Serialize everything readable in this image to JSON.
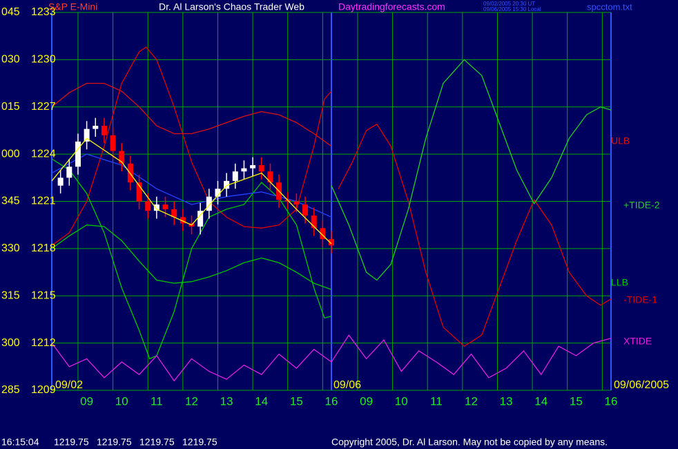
{
  "chart_data": {
    "type": "line",
    "symbol": "S&P E-Mini",
    "title": "Dr. Al Larson's Chaos Trader Web",
    "subtitle": "Daytradingforecasts.com",
    "timestamps": [
      "09/02/2005 20:30 UT",
      "09/06/2005 15:30 Local"
    ],
    "file": "spcctom.txt",
    "xlim": [
      0,
      16
    ],
    "xticks": [
      {
        "value": 1,
        "label": "09"
      },
      {
        "value": 2,
        "label": "10"
      },
      {
        "value": 3,
        "label": "11"
      },
      {
        "value": 4,
        "label": "12"
      },
      {
        "value": 5,
        "label": "13"
      },
      {
        "value": 6,
        "label": "14"
      },
      {
        "value": 7,
        "label": "15"
      },
      {
        "value": 8,
        "label": "16"
      },
      {
        "value": 9,
        "label": "09"
      },
      {
        "value": 10,
        "label": "10"
      },
      {
        "value": 11,
        "label": "11"
      },
      {
        "value": 12,
        "label": "12"
      },
      {
        "value": 13,
        "label": "13"
      },
      {
        "value": 14,
        "label": "14"
      },
      {
        "value": 15,
        "label": "15"
      },
      {
        "value": 16,
        "label": "16"
      }
    ],
    "xgrid": [
      0.75,
      1.75,
      2.75,
      3.75,
      4.75,
      5.75,
      6.75,
      7.75,
      8.75,
      9.75,
      10.75,
      11.75,
      12.75,
      13.75,
      14.75,
      15.75
    ],
    "date_labels": [
      "09/02",
      "09/06",
      "09/06/2005"
    ],
    "ylim": [
      1209,
      1233
    ],
    "yticks": [
      1209,
      1212,
      1215,
      1218,
      1221,
      1224,
      1227,
      1230,
      1233
    ],
    "ytick_codes": [
      "285",
      "300",
      "315",
      "330",
      "345",
      "000",
      "015",
      "030",
      "045"
    ],
    "grid": true,
    "grid_color": "#00a800",
    "bars": {
      "x": [
        0.25,
        0.5,
        0.75,
        1,
        1.25,
        1.5,
        1.75,
        2,
        2.25,
        2.5,
        2.75,
        3,
        3.25,
        3.5,
        3.75,
        4,
        4.25,
        4.5,
        4.75,
        5,
        5.25,
        5.5,
        5.75,
        6,
        6.25,
        6.5,
        6.75,
        7,
        7.25,
        7.5,
        7.75,
        8
      ],
      "open": [
        1222.0,
        1222.5,
        1223.2,
        1224.8,
        1225.6,
        1225.8,
        1225.2,
        1224.2,
        1223.4,
        1222.2,
        1221.0,
        1220.4,
        1220.8,
        1220.5,
        1220.0,
        1219.6,
        1219.4,
        1220.4,
        1221.3,
        1221.8,
        1222.3,
        1222.9,
        1223.1,
        1223.3,
        1222.9,
        1222.2,
        1221.1,
        1221.0,
        1220.8,
        1220.1,
        1219.3,
        1218.6
      ],
      "high": [
        1223.0,
        1223.7,
        1225.3,
        1226.1,
        1226.3,
        1226.3,
        1225.7,
        1224.7,
        1223.9,
        1222.7,
        1221.5,
        1221.3,
        1221.3,
        1221.0,
        1220.5,
        1220.1,
        1220.9,
        1221.8,
        1222.3,
        1222.8,
        1223.4,
        1223.6,
        1223.8,
        1223.8,
        1223.4,
        1222.7,
        1221.6,
        1221.5,
        1221.3,
        1220.6,
        1219.8,
        1219.1
      ],
      "low": [
        1221.5,
        1222.0,
        1222.7,
        1224.3,
        1225.1,
        1224.7,
        1223.7,
        1222.9,
        1221.7,
        1220.5,
        1219.9,
        1219.9,
        1220.0,
        1219.5,
        1219.1,
        1218.9,
        1218.9,
        1219.9,
        1220.8,
        1221.3,
        1221.8,
        1222.4,
        1222.6,
        1222.4,
        1221.7,
        1220.6,
        1220.5,
        1220.3,
        1219.6,
        1218.8,
        1218.1,
        1217.7
      ],
      "close": [
        1222.5,
        1223.2,
        1224.8,
        1225.6,
        1225.8,
        1225.2,
        1224.2,
        1223.4,
        1222.2,
        1221.0,
        1220.4,
        1220.8,
        1220.5,
        1220.0,
        1219.6,
        1219.4,
        1220.4,
        1221.3,
        1221.8,
        1222.3,
        1222.9,
        1223.1,
        1223.3,
        1222.9,
        1222.2,
        1221.1,
        1221.0,
        1220.8,
        1220.1,
        1219.3,
        1218.6,
        1218.2
      ],
      "up_color": "#ffffff",
      "down_color": "#ff0000"
    },
    "series": [
      {
        "name": "ULB",
        "color": "#dd1111",
        "x": [
          0,
          0.5,
          1,
          1.5,
          2,
          2.5,
          3,
          3.5,
          4,
          4.5,
          5,
          5.5,
          6,
          6.5,
          7,
          7.5,
          8
        ],
        "values": [
          1227.0,
          1227.9,
          1228.5,
          1228.5,
          1228.0,
          1227.0,
          1225.8,
          1225.3,
          1225.3,
          1225.6,
          1226.0,
          1226.4,
          1226.7,
          1226.5,
          1226.0,
          1225.3,
          1224.5
        ]
      },
      {
        "name": "LLB",
        "color": "#00c800",
        "x": [
          0,
          0.5,
          1,
          1.5,
          2,
          2.5,
          3,
          3.5,
          4,
          4.5,
          5,
          5.5,
          6,
          6.5,
          7,
          7.5,
          8
        ],
        "values": [
          1218.0,
          1218.8,
          1219.5,
          1219.4,
          1218.5,
          1217.2,
          1216.0,
          1215.8,
          1215.9,
          1216.2,
          1216.6,
          1217.1,
          1217.4,
          1217.1,
          1216.5,
          1215.8,
          1215.4
        ]
      },
      {
        "color": "#e00000",
        "x": [
          0,
          0.5,
          1,
          1.5,
          2,
          2.5,
          2.7,
          3,
          3.5,
          4,
          4.5,
          5,
          5.5,
          6,
          6.5,
          7,
          7.5,
          7.8,
          8
        ],
        "values": [
          1218.2,
          1219.0,
          1221.0,
          1224.5,
          1228.5,
          1230.5,
          1230.8,
          1230.0,
          1227.0,
          1223.5,
          1221.0,
          1220.0,
          1219.4,
          1219.3,
          1219.5,
          1220.5,
          1224.5,
          1227.5,
          1228.0
        ]
      },
      {
        "color": "#00c800",
        "x": [
          0,
          0.5,
          1,
          1.5,
          2,
          2.5,
          2.8,
          3,
          3.5,
          4,
          4.5,
          5,
          5.5,
          6,
          6.5,
          7,
          7.5,
          7.8,
          8
        ],
        "values": [
          1223.7,
          1223.0,
          1221.5,
          1219.0,
          1215.5,
          1212.8,
          1211.0,
          1211.2,
          1214.0,
          1218.0,
          1220.0,
          1220.5,
          1220.8,
          1222.2,
          1221.2,
          1219.5,
          1215.5,
          1213.6,
          1213.7
        ]
      },
      {
        "name": "-TIDE-1",
        "color": "#e00000",
        "x": [
          8.2,
          8.6,
          9.0,
          9.3,
          9.7,
          10.2,
          10.7,
          11.2,
          11.8,
          12.3,
          12.8,
          13.3,
          13.8,
          14.3,
          14.8,
          15.3,
          15.7,
          16
        ],
        "values": [
          1221.8,
          1223.5,
          1225.5,
          1225.9,
          1224.5,
          1221.0,
          1216.5,
          1213.0,
          1211.8,
          1212.5,
          1215.5,
          1218.5,
          1221.1,
          1219.5,
          1216.5,
          1215.0,
          1214.4,
          1214.8
        ]
      },
      {
        "name": "+TIDE-2",
        "color": "#22d022",
        "x": [
          8,
          8.5,
          9.0,
          9.3,
          9.7,
          10.2,
          10.7,
          11.2,
          11.8,
          12.3,
          12.8,
          13.3,
          13.8,
          14.3,
          14.8,
          15.3,
          15.7,
          16
        ],
        "values": [
          1222.0,
          1219.5,
          1216.5,
          1216.0,
          1217.0,
          1220.5,
          1225.0,
          1228.5,
          1230.0,
          1229.0,
          1226.0,
          1223.0,
          1220.85,
          1222.5,
          1225.0,
          1226.5,
          1227.0,
          1226.8
        ]
      },
      {
        "color": "#2244ff",
        "x": [
          0,
          1,
          2,
          3,
          4,
          5,
          6,
          7,
          8
        ],
        "values": [
          1222.8,
          1224.0,
          1223.3,
          1221.8,
          1220.8,
          1221.3,
          1221.6,
          1221.0,
          1220.0
        ]
      },
      {
        "color": "#ffff00",
        "x": [
          0,
          1,
          2,
          3,
          4,
          5,
          6,
          7,
          8
        ],
        "values": [
          1222.3,
          1225.0,
          1223.5,
          1220.5,
          1219.5,
          1222.0,
          1222.8,
          1220.5,
          1218.3
        ]
      },
      {
        "name": "XTIDE",
        "color": "#e020e0",
        "x": [
          0,
          0.5,
          1,
          1.5,
          2,
          2.5,
          3,
          3.5,
          4,
          4.5,
          5,
          5.5,
          6,
          6.5,
          7,
          7.5,
          8,
          8.5,
          9,
          9.5,
          10,
          10.5,
          11,
          11.5,
          12,
          12.5,
          13,
          13.5,
          14,
          14.5,
          15,
          15.5,
          16
        ],
        "values": [
          1212.0,
          1210.5,
          1211.0,
          1209.8,
          1210.8,
          1210.0,
          1211.2,
          1209.6,
          1211.0,
          1210.2,
          1209.7,
          1210.6,
          1210.0,
          1211.3,
          1210.4,
          1211.6,
          1210.8,
          1212.5,
          1211.0,
          1212.2,
          1210.2,
          1211.5,
          1210.8,
          1210.0,
          1211.3,
          1209.8,
          1210.4,
          1211.5,
          1210.0,
          1211.8,
          1211.2,
          1212.0,
          1212.3
        ]
      }
    ],
    "quote_time": "16:15:04",
    "quote": [
      1219.75,
      1219.75,
      1219.75,
      1219.75
    ],
    "copyright": "Copyright 2005, Dr. Al Larson. May not be copied by any means."
  }
}
